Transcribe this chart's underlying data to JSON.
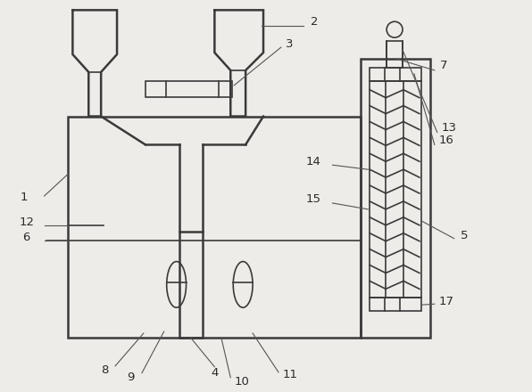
{
  "bg_color": "#eeece8",
  "line_color": "#3a3a3a",
  "line_width": 1.2,
  "thick_lw": 1.8,
  "label_color": "#2a2a2a",
  "label_fontsize": 9.5,
  "fig_width": 5.96,
  "fig_height": 4.4,
  "dpi": 100
}
